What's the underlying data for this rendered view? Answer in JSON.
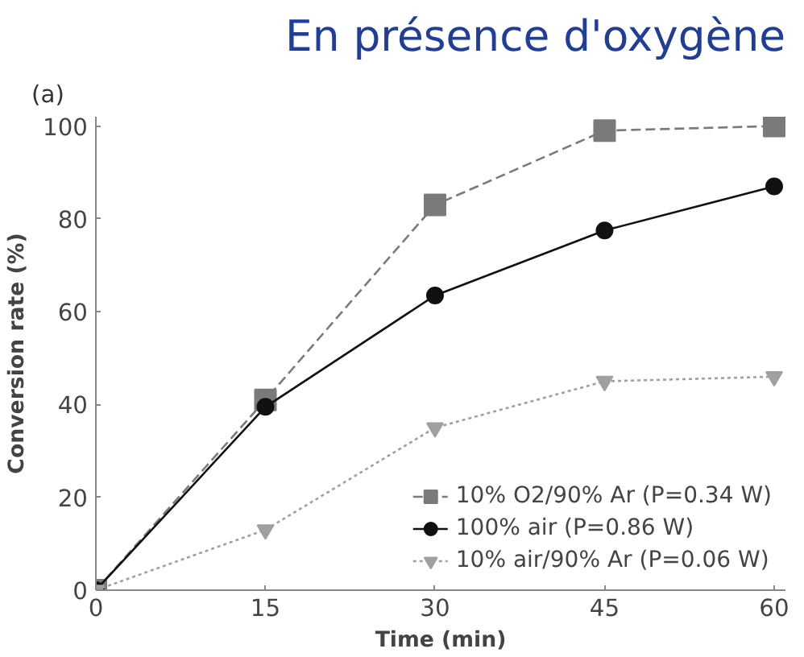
{
  "chart_data": {
    "type": "line",
    "title": "En présence d'oxygène",
    "annotations": [
      "(a)"
    ],
    "xlabel": "Time (min)",
    "ylabel": "Conversion rate (%)",
    "x": [
      0,
      15,
      30,
      45,
      60
    ],
    "series": [
      {
        "name": "10% O2/90% Ar (P=0.34 W)",
        "color": "#7a7a7a",
        "marker": "square",
        "line_style": "dashed",
        "values": [
          0,
          41,
          83,
          99,
          100
        ]
      },
      {
        "name": "100% air (P=0.86 W)",
        "color": "#111111",
        "marker": "circle",
        "line_style": "solid",
        "values": [
          0,
          39.5,
          63.5,
          77.5,
          87
        ]
      },
      {
        "name": "10% air/90% Ar (P=0.06 W)",
        "color": "#a0a0a0",
        "marker": "triangle",
        "line_style": "dotted",
        "values": [
          0,
          13,
          35,
          45,
          46
        ]
      }
    ],
    "xlim": [
      0,
      61
    ],
    "ylim": [
      0,
      102
    ],
    "xticks": [
      0,
      15,
      30,
      45,
      60
    ],
    "yticks": [
      0,
      20,
      40,
      60,
      80,
      100
    ],
    "grid": false,
    "legend": "bottom right"
  }
}
